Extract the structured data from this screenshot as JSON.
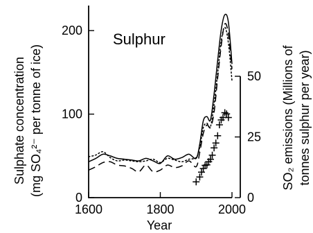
{
  "chart_data": {
    "type": "line",
    "title": "Sulphur",
    "xlabel": "Year",
    "ylabel_left": [
      "Sulphate concentration",
      "(mg SO₄²⁻ per tonne of ice)"
    ],
    "ylabel_right": [
      "SO₂ emissions (Millions of",
      "tonnes sulphur per year)"
    ],
    "xlim": [
      1600,
      2000
    ],
    "ylim_left": [
      0,
      230
    ],
    "ylim_right": [
      0,
      50
    ],
    "x_ticks": [
      1600,
      1800,
      2000
    ],
    "x_tick_labels": [
      "1600",
      "1800",
      "2000"
    ],
    "left_ticks": [
      0,
      100,
      200
    ],
    "left_tick_labels": [
      "0",
      "100",
      "200"
    ],
    "right_ticks": [
      0,
      25,
      50
    ],
    "right_tick_labels": [
      "0",
      "25",
      "50"
    ],
    "series": [
      {
        "style": "solid",
        "x": [
          1600,
          1620,
          1640,
          1660,
          1680,
          1700,
          1720,
          1740,
          1760,
          1780,
          1800,
          1820,
          1840,
          1860,
          1880,
          1900,
          1910,
          1920,
          1930,
          1940,
          1950,
          1960,
          1970,
          1980,
          1990,
          2000
        ],
        "y": [
          43,
          47,
          52,
          50,
          47,
          46,
          45,
          44,
          47,
          44,
          41,
          50,
          46,
          48,
          52,
          47,
          64,
          92,
          97,
          93,
          124,
          164,
          201,
          219,
          210,
          160
        ]
      },
      {
        "style": "dashed",
        "x": [
          1600,
          1620,
          1640,
          1660,
          1680,
          1700,
          1720,
          1740,
          1760,
          1780,
          1800,
          1820,
          1840,
          1860,
          1880,
          1900,
          1910,
          1920,
          1930,
          1940,
          1950,
          1960,
          1970,
          1980,
          1990,
          2000
        ],
        "y": [
          33,
          37,
          42,
          43,
          39,
          38,
          35,
          31,
          39,
          31,
          33,
          39,
          36,
          38,
          44,
          37,
          54,
          77,
          87,
          84,
          102,
          143,
          182,
          208,
          196,
          154
        ]
      },
      {
        "style": "dotted",
        "x": [
          1600,
          1620,
          1640,
          1660,
          1680,
          1700,
          1720,
          1740,
          1760,
          1780,
          1800,
          1820,
          1840,
          1860,
          1880,
          1900,
          1910,
          1920,
          1930,
          1940,
          1950,
          1960,
          1970,
          1980,
          1990,
          2000
        ],
        "y": [
          49,
          51,
          55,
          48,
          44,
          45,
          44,
          43,
          44,
          46,
          42,
          47,
          45,
          43,
          46,
          48,
          60,
          84,
          89,
          85,
          112,
          149,
          188,
          204,
          185,
          140
        ]
      }
    ],
    "markers": {
      "axis": "right",
      "style": "plus",
      "x": [
        1900,
        1910,
        1915,
        1920,
        1925,
        1930,
        1935,
        1940,
        1945,
        1950,
        1955,
        1960,
        1965,
        1970,
        1975,
        1980,
        1985,
        1990
      ],
      "y": [
        6.5,
        8.5,
        10.5,
        12,
        13.3,
        13.5,
        14.8,
        15.8,
        17.5,
        20.5,
        22.5,
        25.5,
        30,
        32,
        33,
        35,
        34.5,
        33
      ]
    }
  }
}
